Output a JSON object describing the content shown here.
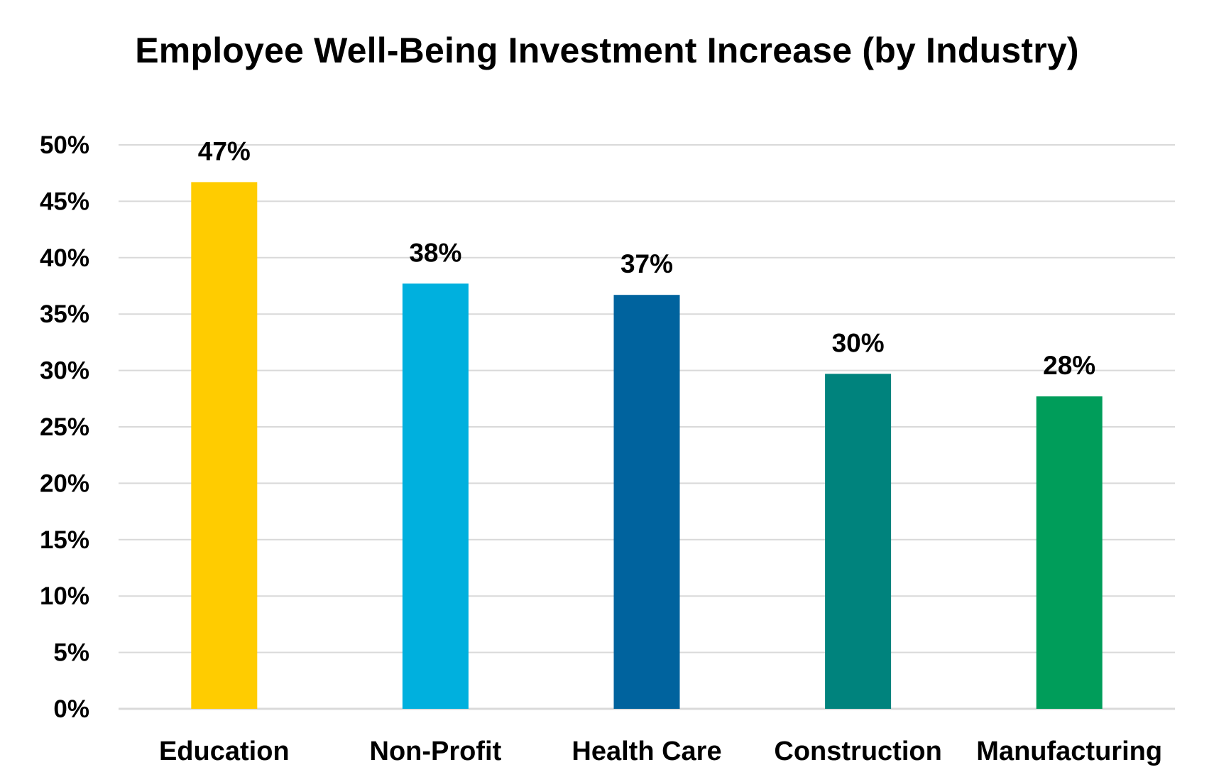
{
  "chart_data": {
    "type": "bar",
    "title": "Employee Well-Being Investment Increase (by Industry)",
    "categories": [
      "Education",
      "Non-Profit",
      "Health Care",
      "Construction",
      "Manufacturing"
    ],
    "values": [
      47,
      38,
      37,
      30,
      28
    ],
    "data_labels": [
      "47%",
      "38%",
      "37%",
      "30%",
      "28%"
    ],
    "value_unit": "%",
    "colors": [
      "#FFCC00",
      "#00B0DE",
      "#00639E",
      "#00837D",
      "#009D5A"
    ],
    "ylim": [
      0,
      50
    ],
    "yticks": [
      0,
      5,
      10,
      15,
      20,
      25,
      30,
      35,
      40,
      45,
      50
    ],
    "ytick_labels": [
      "0%",
      "5%",
      "10%",
      "15%",
      "20%",
      "25%",
      "30%",
      "35%",
      "40%",
      "45%",
      "50%"
    ],
    "xlabel": "",
    "ylabel": "",
    "grid": true,
    "legend": "none",
    "gridline_color": "#d9d9d9"
  }
}
